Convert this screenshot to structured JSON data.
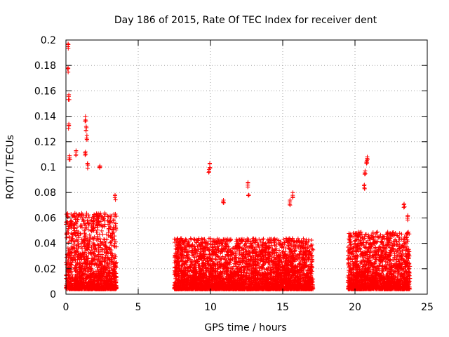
{
  "chart_data": {
    "type": "scatter",
    "title": "Day 186 of 2015, Rate Of TEC Index for receiver dent",
    "xlabel": "GPS time / hours",
    "ylabel": "ROTI / TECUs",
    "xlim": [
      0,
      25
    ],
    "ylim": [
      0,
      0.2
    ],
    "x_ticks": [
      "0",
      "5",
      "10",
      "15",
      "20",
      "25"
    ],
    "y_ticks": [
      "0",
      "0.02",
      "0.04",
      "0.06",
      "0.08",
      "0.1",
      "0.12",
      "0.14",
      "0.16",
      "0.18",
      "0.2"
    ],
    "grid": true,
    "marker": "+",
    "marker_color": "#ff0000",
    "series": [
      {
        "name": "",
        "clusters": [
          {
            "x_range": [
              0.0,
              3.5
            ],
            "typical_max": 0.06
          },
          {
            "x_range": [
              7.5,
              17.1
            ],
            "typical_max": 0.04
          },
          {
            "x_range": [
              19.5,
              23.8
            ],
            "typical_max": 0.045
          }
        ],
        "notable_points": [
          {
            "x": 0.15,
            "y": 0.197
          },
          {
            "x": 0.15,
            "y": 0.178
          },
          {
            "x": 0.2,
            "y": 0.157
          },
          {
            "x": 0.2,
            "y": 0.134
          },
          {
            "x": 0.25,
            "y": 0.109
          },
          {
            "x": 0.7,
            "y": 0.113
          },
          {
            "x": 1.35,
            "y": 0.14
          },
          {
            "x": 1.4,
            "y": 0.132
          },
          {
            "x": 1.45,
            "y": 0.125
          },
          {
            "x": 1.35,
            "y": 0.112
          },
          {
            "x": 1.5,
            "y": 0.103
          },
          {
            "x": 2.35,
            "y": 0.101
          },
          {
            "x": 3.4,
            "y": 0.078
          },
          {
            "x": 9.95,
            "y": 0.103
          },
          {
            "x": 9.9,
            "y": 0.098
          },
          {
            "x": 10.9,
            "y": 0.074
          },
          {
            "x": 12.6,
            "y": 0.088
          },
          {
            "x": 12.65,
            "y": 0.078
          },
          {
            "x": 15.7,
            "y": 0.08
          },
          {
            "x": 15.5,
            "y": 0.074
          },
          {
            "x": 20.85,
            "y": 0.108
          },
          {
            "x": 20.8,
            "y": 0.104
          },
          {
            "x": 20.7,
            "y": 0.097
          },
          {
            "x": 20.65,
            "y": 0.086
          },
          {
            "x": 23.4,
            "y": 0.071
          },
          {
            "x": 23.65,
            "y": 0.062
          }
        ]
      }
    ]
  }
}
